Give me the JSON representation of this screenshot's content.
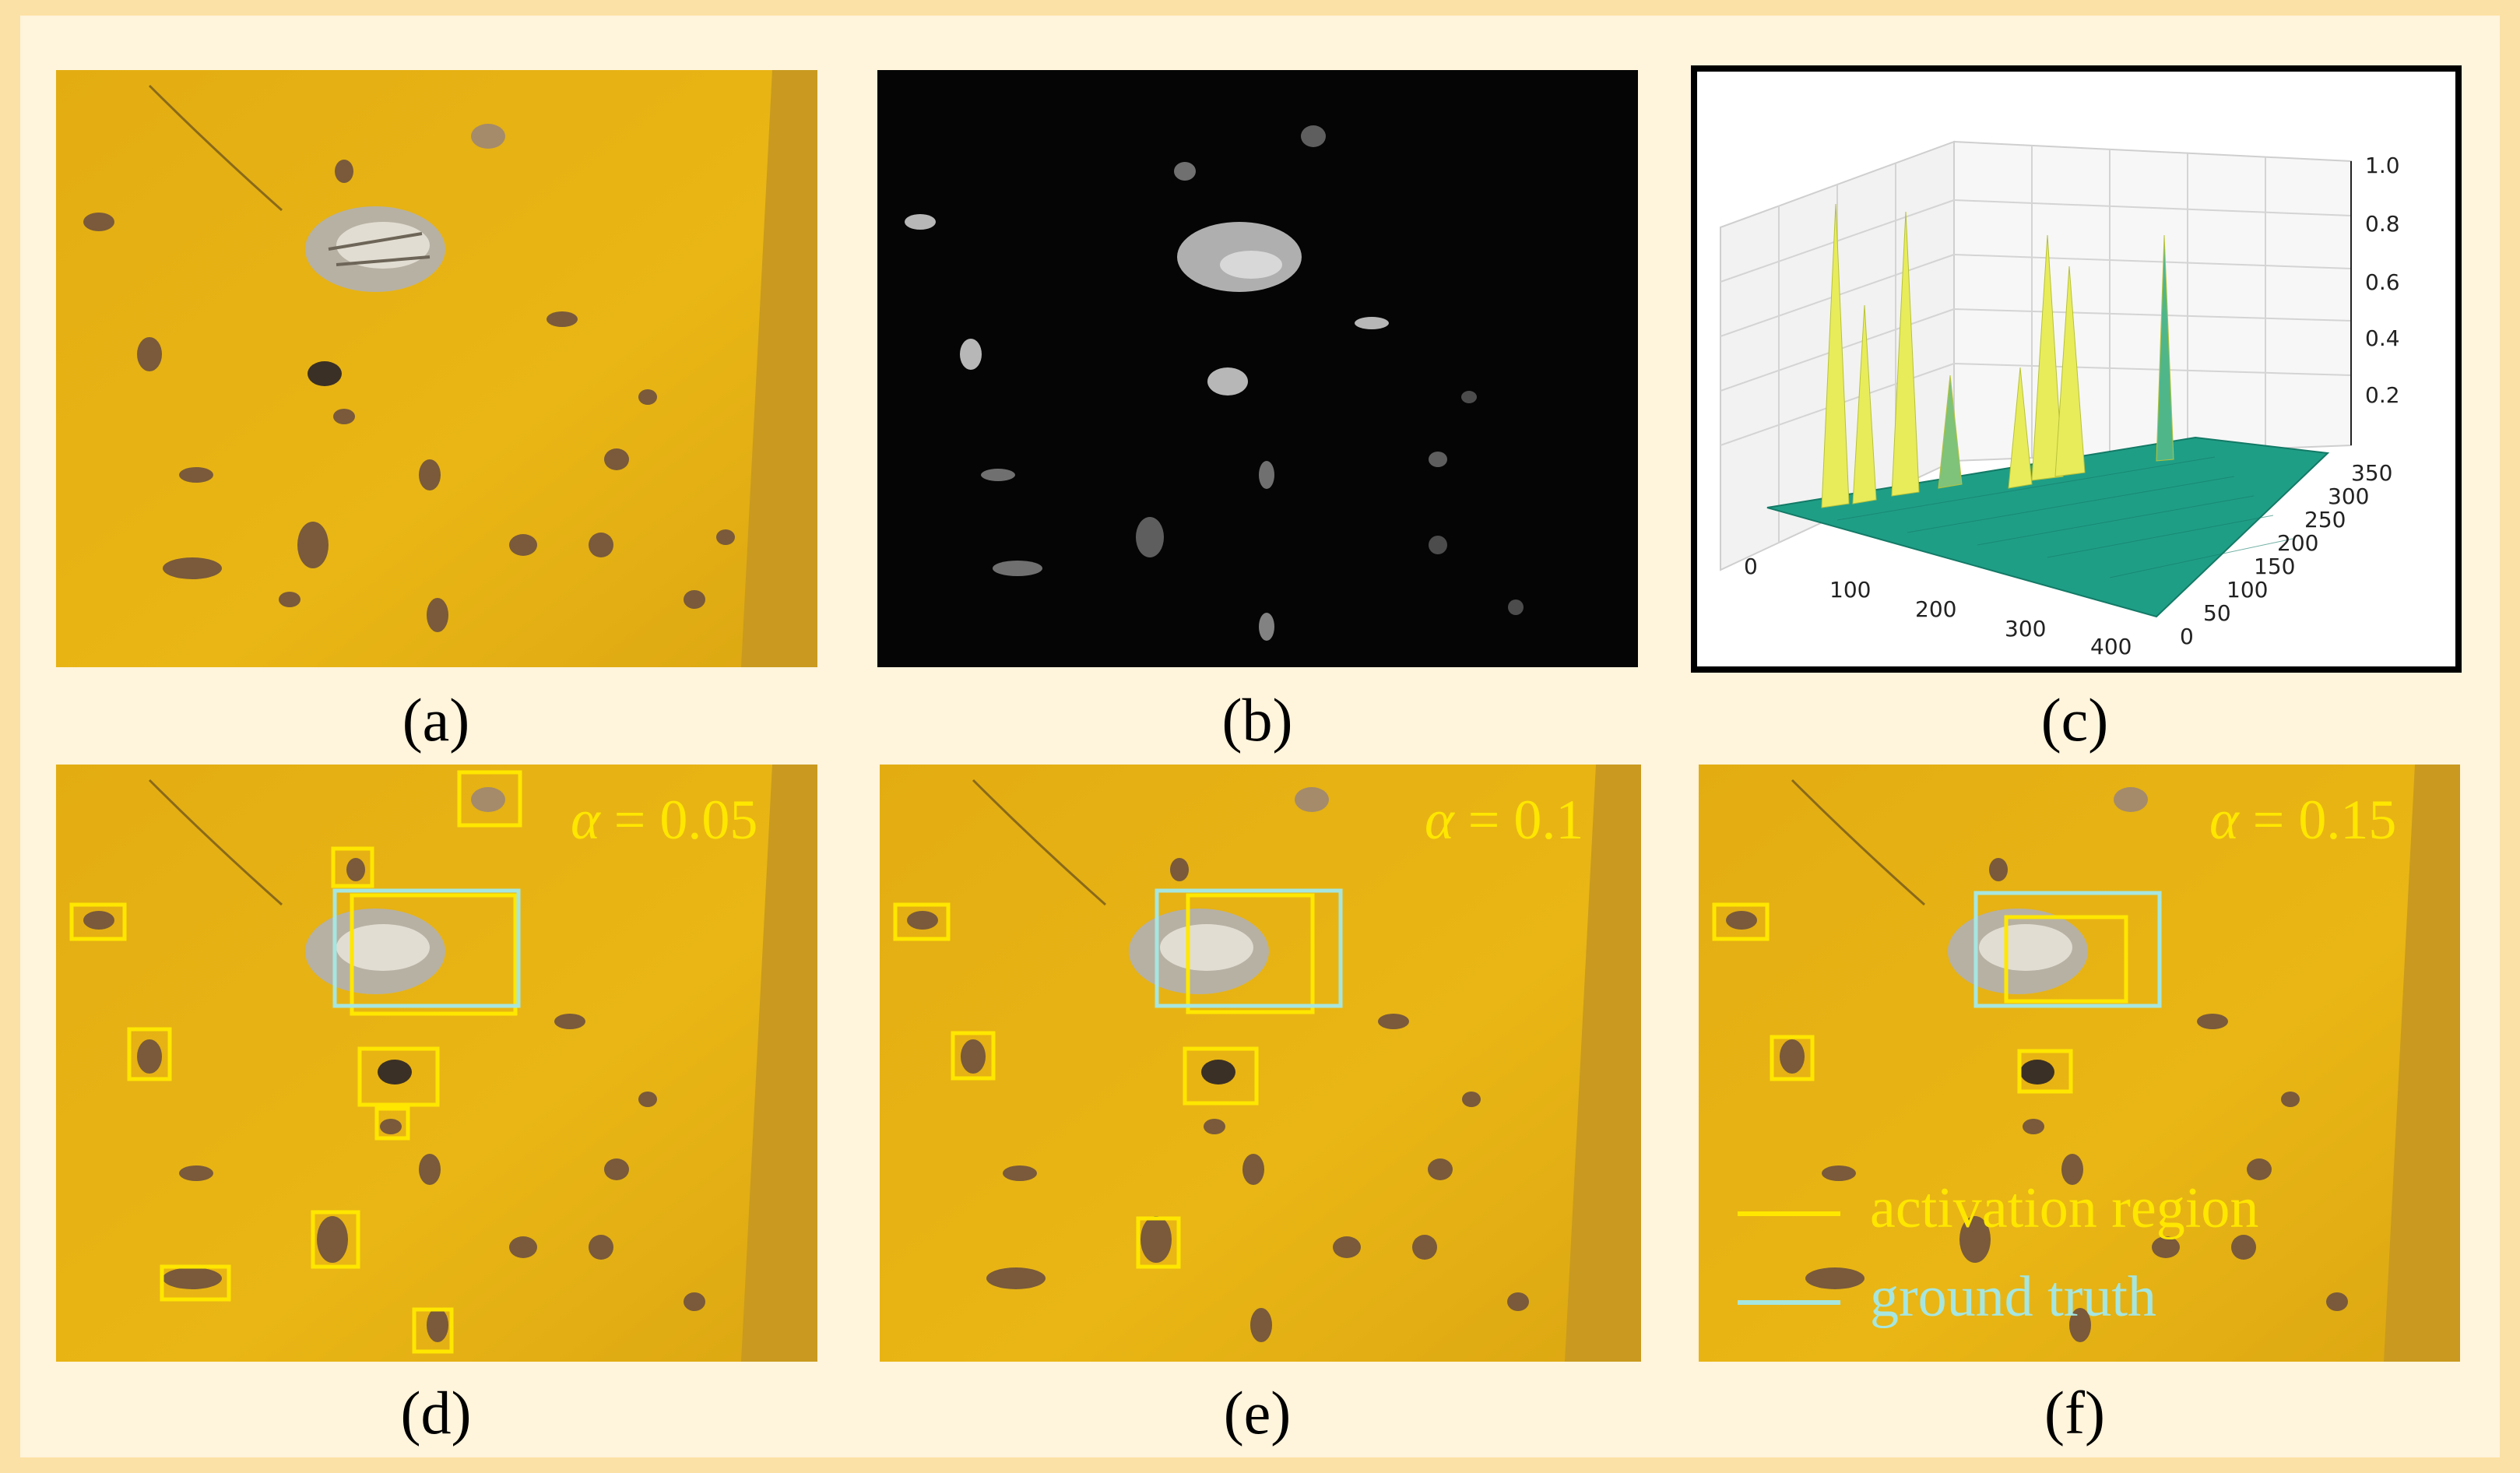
{
  "panels": {
    "a": {
      "label": "(a)"
    },
    "b": {
      "label": "(b)"
    },
    "c": {
      "label": "(c)"
    },
    "d": {
      "label": "(d)",
      "alpha_symbol": "α",
      "alpha_value": " = 0.05"
    },
    "e": {
      "label": "(e)",
      "alpha_symbol": "α",
      "alpha_value": " = 0.1"
    },
    "f": {
      "label": "(f)",
      "alpha_symbol": "α",
      "alpha_value": " = 0.15"
    }
  },
  "legend": {
    "activation": "activation region",
    "ground_truth": "ground truth"
  },
  "colors": {
    "background": "#fbe1a5",
    "plate": "#e8b10f",
    "activation_box": "#ffe700",
    "ground_truth_box": "#a6e6e0",
    "surface": "#1f9e86",
    "peak": "#e8ec5a"
  },
  "chart_data": {
    "type": "surface3d",
    "z_ticks": [
      "1.0",
      "0.8",
      "0.6",
      "0.4",
      "0.2"
    ],
    "x_ticks": [
      "0",
      "100",
      "200",
      "300",
      "400"
    ],
    "y_ticks": [
      "0",
      "50",
      "100",
      "150",
      "200",
      "250",
      "300",
      "350"
    ],
    "zlim": [
      0,
      1.0
    ],
    "xlim": [
      0,
      450
    ],
    "ylim": [
      0,
      360
    ]
  }
}
